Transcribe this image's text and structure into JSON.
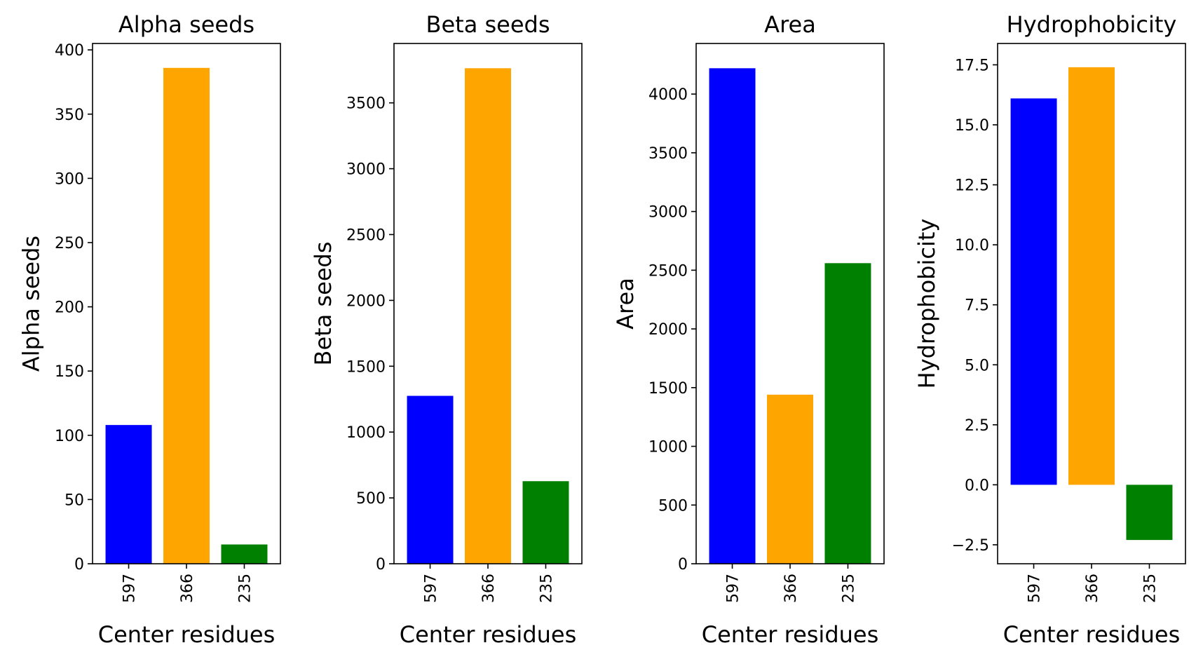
{
  "chart_data": [
    {
      "type": "bar",
      "title": "Alpha seeds",
      "xlabel": "Center residues",
      "ylabel": "Alpha seeds",
      "categories": [
        "597",
        "366",
        "235"
      ],
      "values": [
        108,
        386,
        15
      ],
      "colors": [
        "#0000ff",
        "#ffa500",
        "#008000"
      ],
      "ylim": [
        0,
        405
      ],
      "yticks": [
        0,
        50,
        100,
        150,
        200,
        250,
        300,
        350,
        400
      ],
      "ytick_labels": [
        "0",
        "50",
        "100",
        "150",
        "200",
        "250",
        "300",
        "350",
        "400"
      ],
      "grid": false
    },
    {
      "type": "bar",
      "title": "Beta seeds",
      "xlabel": "Center residues",
      "ylabel": "Beta seeds",
      "categories": [
        "597",
        "366",
        "235"
      ],
      "values": [
        1275,
        3763,
        627
      ],
      "colors": [
        "#0000ff",
        "#ffa500",
        "#008000"
      ],
      "ylim": [
        0,
        3951
      ],
      "yticks": [
        0,
        500,
        1000,
        1500,
        2000,
        2500,
        3000,
        3500
      ],
      "ytick_labels": [
        "0",
        "500",
        "1000",
        "1500",
        "2000",
        "2500",
        "3000",
        "3500"
      ],
      "grid": false
    },
    {
      "type": "bar",
      "title": "Area",
      "xlabel": "Center residues",
      "ylabel": "Area",
      "categories": [
        "597",
        "366",
        "235"
      ],
      "values": [
        4220,
        1440,
        2560
      ],
      "colors": [
        "#0000ff",
        "#ffa500",
        "#008000"
      ],
      "ylim": [
        0,
        4431
      ],
      "yticks": [
        0,
        500,
        1000,
        1500,
        2000,
        2500,
        3000,
        3500,
        4000
      ],
      "ytick_labels": [
        "0",
        "500",
        "1000",
        "1500",
        "2000",
        "2500",
        "3000",
        "3500",
        "4000"
      ],
      "grid": false
    },
    {
      "type": "bar",
      "title": "Hydrophobicity",
      "xlabel": "Center residues",
      "ylabel": "Hydrophobicity",
      "categories": [
        "597",
        "366",
        "235"
      ],
      "values": [
        16.1,
        17.4,
        -2.3
      ],
      "colors": [
        "#0000ff",
        "#ffa500",
        "#008000"
      ],
      "ylim": [
        -3.29,
        18.39
      ],
      "yticks": [
        -2.5,
        0,
        2.5,
        5,
        7.5,
        10,
        12.5,
        15,
        17.5
      ],
      "ytick_labels": [
        "−2.5",
        "0.0",
        "2.5",
        "5.0",
        "7.5",
        "10.0",
        "12.5",
        "15.0",
        "17.5"
      ],
      "grid": false
    }
  ]
}
